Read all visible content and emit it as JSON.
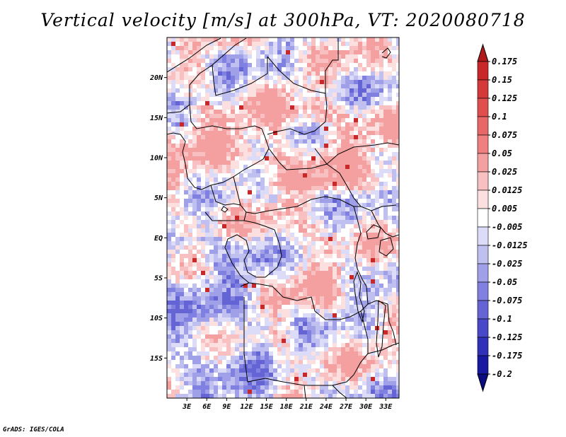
{
  "title": "Vertical velocity [m/s] at 300hPa, VT: 2020080718",
  "credit": "GrADS: IGES/COLA",
  "map": {
    "lon_range": [
      0,
      35
    ],
    "lat_range": [
      -20,
      25
    ],
    "lat_ticks": [
      {
        "value": 20,
        "label": "20N"
      },
      {
        "value": 15,
        "label": "15N"
      },
      {
        "value": 10,
        "label": "10N"
      },
      {
        "value": 5,
        "label": "5N"
      },
      {
        "value": 0,
        "label": "EQ"
      },
      {
        "value": -5,
        "label": "5S"
      },
      {
        "value": -10,
        "label": "10S"
      },
      {
        "value": -15,
        "label": "15S"
      }
    ],
    "lon_ticks": [
      {
        "value": 3,
        "label": "3E"
      },
      {
        "value": 6,
        "label": "6E"
      },
      {
        "value": 9,
        "label": "9E"
      },
      {
        "value": 12,
        "label": "12E"
      },
      {
        "value": 15,
        "label": "15E"
      },
      {
        "value": 18,
        "label": "18E"
      },
      {
        "value": 21,
        "label": "21E"
      },
      {
        "value": 24,
        "label": "24E"
      },
      {
        "value": 27,
        "label": "27E"
      },
      {
        "value": 30,
        "label": "30E"
      },
      {
        "value": 33,
        "label": "33E"
      }
    ]
  },
  "colorbar": {
    "levels": [
      "0.175",
      "0.15",
      "0.125",
      "0.1",
      "0.075",
      "0.05",
      "0.025",
      "0.0125",
      "0.005",
      "-0.005",
      "-0.0125",
      "-0.025",
      "-0.05",
      "-0.075",
      "-0.1",
      "-0.125",
      "-0.175",
      "-0.2"
    ],
    "colors": [
      "#b01a1a",
      "#c82828",
      "#d43a3a",
      "#e04e4e",
      "#e86868",
      "#f08080",
      "#f4a0a0",
      "#f8c0c0",
      "#fce0e0",
      "#ffffff",
      "#dcdcf8",
      "#c0c0f0",
      "#a0a0e8",
      "#8080e0",
      "#6464d4",
      "#4848c8",
      "#3030b8",
      "#1818a0",
      "#0c0c80"
    ]
  }
}
